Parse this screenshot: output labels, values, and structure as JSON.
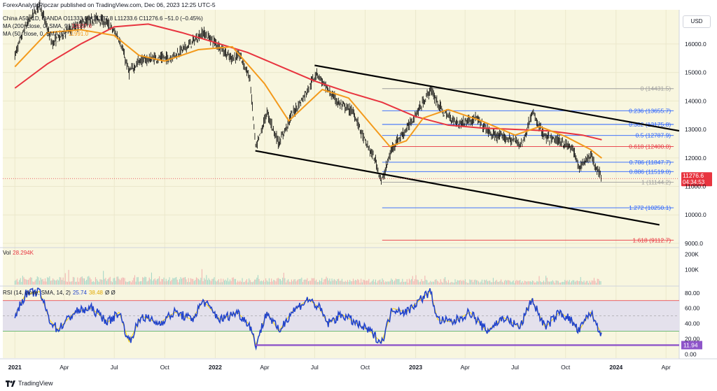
{
  "header": {
    "text": "ForexAnalytixPipczar published on TradingView.com, Dec 06, 2023 12:25 UTC-5"
  },
  "legend": {
    "symbol_line": "China A50, 1D, OANDA  O11333.0  H11337.8  L11233.6  C11276.6 −51.0 (−0.45%)",
    "ma200_label": "MA (200, close, 0, SMA, 9)",
    "ma200_value": "12637.6",
    "ma50_label": "MA (50, close, 0, SMA, 9)",
    "ma50_value": "11991.0",
    "vol_label": "Vol",
    "vol_value": "28.294K",
    "rsi_label": "RSI (14, close, SMA, 14, 2)",
    "rsi_value": "25.74",
    "rsi_ma_value": "38.48",
    "rsi_extra": "Ø  Ø"
  },
  "currency_button": "USD",
  "footer": {
    "brand": "TradingView"
  },
  "colors": {
    "background": "#f8f6df",
    "ma200": "#e8343f",
    "ma50": "#f39a1c",
    "rsi_line": "#2244cc",
    "rsi_signal": "#ffd700",
    "rsi_band": "#e4e1ec",
    "support_line": "#8e55c9",
    "price_badge": "#e8343f",
    "fib_blue": "#2962ff",
    "fib_red": "#e8343f",
    "fib_gray": "#9e9e9e",
    "volume_red": "#f2b5b2",
    "volume_green": "#a8d8c8"
  },
  "chart_data": [
    {
      "type": "candlestick",
      "title": "China A50, 1D, OANDA",
      "y_axis_ticks": [
        9000,
        10000,
        11000,
        12000,
        13000,
        14000,
        15000,
        16000
      ],
      "y_axis_tick_labels": [
        "9000.0",
        "10000.0",
        "11000.0",
        "12000.0",
        "13000.0",
        "14000.0",
        "15000.0",
        "16000.0"
      ],
      "ylim": [
        8900,
        17200
      ],
      "x_axis_labels": [
        "2021",
        "Apr",
        "Jul",
        "Oct",
        "2022",
        "Apr",
        "Jul",
        "Oct",
        "2023",
        "Apr",
        "Jul",
        "Oct",
        "2024",
        "Apr"
      ],
      "x_axis_dates": [
        "2021-01",
        "2021-04",
        "2021-07",
        "2021-10",
        "2022-01",
        "2022-04",
        "2022-07",
        "2022-10",
        "2023-01",
        "2023-04",
        "2023-07",
        "2023-10",
        "2024-01",
        "2024-04"
      ],
      "last_price": {
        "value": 11276.6,
        "label": "11276.6",
        "countdown": "04:34:53"
      },
      "price_path": [
        [
          "2021-01-01",
          15600
        ],
        [
          "2021-01-20",
          16600
        ],
        [
          "2021-02-15",
          17400
        ],
        [
          "2021-03-10",
          16000
        ],
        [
          "2021-04-01",
          16400
        ],
        [
          "2021-05-01",
          16700
        ],
        [
          "2021-06-01",
          16900
        ],
        [
          "2021-06-20",
          16700
        ],
        [
          "2021-07-10",
          16200
        ],
        [
          "2021-07-28",
          15000
        ],
        [
          "2021-08-15",
          15400
        ],
        [
          "2021-09-10",
          15500
        ],
        [
          "2021-10-10",
          15500
        ],
        [
          "2021-11-10",
          15900
        ],
        [
          "2021-12-10",
          16400
        ],
        [
          "2022-01-10",
          15900
        ],
        [
          "2022-01-28",
          15500
        ],
        [
          "2022-02-15",
          15600
        ],
        [
          "2022-03-05",
          14800
        ],
        [
          "2022-03-16",
          12300
        ],
        [
          "2022-04-05",
          13600
        ],
        [
          "2022-04-27",
          12500
        ],
        [
          "2022-05-20",
          13500
        ],
        [
          "2022-06-10",
          14100
        ],
        [
          "2022-07-05",
          15000
        ],
        [
          "2022-07-20",
          14500
        ],
        [
          "2022-08-15",
          13900
        ],
        [
          "2022-09-10",
          13600
        ],
        [
          "2022-09-30",
          12600
        ],
        [
          "2022-10-20",
          11900
        ],
        [
          "2022-10-31",
          11144
        ],
        [
          "2022-11-20",
          12400
        ],
        [
          "2022-12-15",
          13000
        ],
        [
          "2023-01-10",
          13800
        ],
        [
          "2023-01-28",
          14400
        ],
        [
          "2023-02-20",
          13600
        ],
        [
          "2023-03-20",
          13200
        ],
        [
          "2023-04-20",
          13400
        ],
        [
          "2023-05-20",
          12800
        ],
        [
          "2023-06-15",
          12700
        ],
        [
          "2023-07-15",
          12500
        ],
        [
          "2023-08-01",
          13600
        ],
        [
          "2023-08-25",
          12700
        ],
        [
          "2023-09-20",
          12600
        ],
        [
          "2023-10-15",
          12300
        ],
        [
          "2023-10-25",
          11650
        ],
        [
          "2023-11-15",
          12100
        ],
        [
          "2023-12-06",
          11277
        ]
      ],
      "ma200_path": [
        [
          "2021-01-01",
          14450
        ],
        [
          "2021-03-01",
          15300
        ],
        [
          "2021-05-01",
          16000
        ],
        [
          "2021-07-01",
          16600
        ],
        [
          "2021-09-01",
          16700
        ],
        [
          "2021-11-01",
          16400
        ],
        [
          "2022-01-01",
          16050
        ],
        [
          "2022-03-01",
          15700
        ],
        [
          "2022-05-01",
          15200
        ],
        [
          "2022-07-01",
          14700
        ],
        [
          "2022-09-01",
          14300
        ],
        [
          "2022-11-01",
          13950
        ],
        [
          "2023-01-01",
          13450
        ],
        [
          "2023-03-01",
          13150
        ],
        [
          "2023-05-01",
          13050
        ],
        [
          "2023-07-01",
          13000
        ],
        [
          "2023-09-01",
          12950
        ],
        [
          "2023-11-01",
          12800
        ],
        [
          "2023-12-06",
          12638
        ]
      ],
      "ma50_path": [
        [
          "2021-01-01",
          15200
        ],
        [
          "2021-03-01",
          16400
        ],
        [
          "2021-05-01",
          16500
        ],
        [
          "2021-07-01",
          16300
        ],
        [
          "2021-08-15",
          15600
        ],
        [
          "2021-10-01",
          15400
        ],
        [
          "2021-12-01",
          15800
        ],
        [
          "2022-02-01",
          15900
        ],
        [
          "2022-04-01",
          14600
        ],
        [
          "2022-05-15",
          13300
        ],
        [
          "2022-07-15",
          14400
        ],
        [
          "2022-09-01",
          14100
        ],
        [
          "2022-10-15",
          13100
        ],
        [
          "2022-11-15",
          12400
        ],
        [
          "2022-12-15",
          12600
        ],
        [
          "2023-01-15",
          13400
        ],
        [
          "2023-03-01",
          13700
        ],
        [
          "2023-05-01",
          13300
        ],
        [
          "2023-07-01",
          12800
        ],
        [
          "2023-08-15",
          13100
        ],
        [
          "2023-10-01",
          12750
        ],
        [
          "2023-11-15",
          12300
        ],
        [
          "2023-12-06",
          11991
        ]
      ],
      "trendlines": [
        {
          "from": [
            "2022-07-01",
            15250
          ],
          "to": [
            "2024-04-25",
            12950
          ]
        },
        {
          "from": [
            "2022-03-15",
            12250
          ],
          "to": [
            "2024-03-20",
            9650
          ]
        }
      ],
      "fibonacci": {
        "start": "2022-11-01",
        "end": "2024-04-15",
        "levels": [
          {
            "ratio_label": "0",
            "value": 14431.5,
            "label": "0 (14431.5)",
            "color": "gray"
          },
          {
            "ratio_label": "0.236",
            "value": 13655.7,
            "label": "0.236 (13655.7)",
            "color": "blue"
          },
          {
            "ratio_label": "0.382",
            "value": 13175.8,
            "label": "0.382 (13175.8)",
            "color": "blue"
          },
          {
            "ratio_label": "0.5",
            "value": 12787.9,
            "label": "0.5 (12787.9)",
            "color": "blue"
          },
          {
            "ratio_label": "0.618",
            "value": 12400.0,
            "label": "0.618 (12400.0)",
            "color": "red"
          },
          {
            "ratio_label": "0.786",
            "value": 11847.7,
            "label": "0.786 (11847.7)",
            "color": "blue"
          },
          {
            "ratio_label": "0.886",
            "value": 11519.0,
            "label": "0.886 (11519.0)",
            "color": "blue"
          },
          {
            "ratio_label": "1",
            "value": 11144.2,
            "label": "1 (11144.2)",
            "color": "gray"
          },
          {
            "ratio_label": "1.272",
            "value": 10250.1,
            "label": "1.272 (10250.1)",
            "color": "blue"
          },
          {
            "ratio_label": "1.618",
            "value": 9112.7,
            "label": "1.618 (9112.7)",
            "color": "red"
          }
        ]
      }
    },
    {
      "type": "bar",
      "title": "Vol",
      "y_axis_ticks": [
        100,
        200
      ],
      "y_axis_tick_labels": [
        "100K",
        "200K"
      ],
      "ylim": [
        0,
        240
      ],
      "unit": "K",
      "last_value": 28.294
    },
    {
      "type": "line",
      "title": "RSI (14, close, SMA, 14, 2)",
      "y_axis_ticks": [
        0,
        20,
        40,
        60,
        80
      ],
      "y_axis_tick_labels": [
        "0.00",
        "20.00",
        "40.00",
        "60.00",
        "80.00"
      ],
      "ylim": [
        -5,
        88
      ],
      "bands": {
        "upper": 70,
        "middle": 50,
        "lower": 30
      },
      "last_value": 25.74,
      "support_line": {
        "value": 11.94,
        "label": "11.94",
        "from": "2022-03-15"
      },
      "rsi_path": [
        [
          "2021-01-01",
          50
        ],
        [
          "2021-01-20",
          78
        ],
        [
          "2021-02-15",
          82
        ],
        [
          "2021-03-05",
          45
        ],
        [
          "2021-03-20",
          32
        ],
        [
          "2021-04-20",
          55
        ],
        [
          "2021-05-20",
          60
        ],
        [
          "2021-06-20",
          42
        ],
        [
          "2021-07-10",
          55
        ],
        [
          "2021-07-28",
          16
        ],
        [
          "2021-08-20",
          50
        ],
        [
          "2021-09-20",
          40
        ],
        [
          "2021-10-20",
          55
        ],
        [
          "2021-11-20",
          45
        ],
        [
          "2021-12-10",
          70
        ],
        [
          "2022-01-10",
          45
        ],
        [
          "2022-02-10",
          55
        ],
        [
          "2022-03-05",
          38
        ],
        [
          "2022-03-16",
          12
        ],
        [
          "2022-04-05",
          55
        ],
        [
          "2022-04-27",
          30
        ],
        [
          "2022-05-20",
          55
        ],
        [
          "2022-06-20",
          72
        ],
        [
          "2022-07-10",
          60
        ],
        [
          "2022-07-25",
          40
        ],
        [
          "2022-08-20",
          52
        ],
        [
          "2022-09-20",
          38
        ],
        [
          "2022-10-10",
          30
        ],
        [
          "2022-10-31",
          15
        ],
        [
          "2022-11-20",
          60
        ],
        [
          "2022-12-15",
          55
        ],
        [
          "2023-01-15",
          75
        ],
        [
          "2023-01-28",
          82
        ],
        [
          "2023-02-10",
          45
        ],
        [
          "2023-03-10",
          42
        ],
        [
          "2023-04-10",
          55
        ],
        [
          "2023-05-10",
          30
        ],
        [
          "2023-06-10",
          48
        ],
        [
          "2023-07-10",
          35
        ],
        [
          "2023-07-31",
          72
        ],
        [
          "2023-08-25",
          35
        ],
        [
          "2023-09-20",
          55
        ],
        [
          "2023-10-10",
          45
        ],
        [
          "2023-10-25",
          30
        ],
        [
          "2023-11-15",
          55
        ],
        [
          "2023-12-06",
          26
        ]
      ]
    }
  ]
}
